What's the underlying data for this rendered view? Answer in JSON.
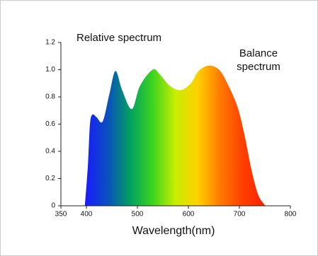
{
  "chart_data": {
    "type": "area",
    "title": "Relative spectrum",
    "annotation": [
      "Balance",
      "spectrum"
    ],
    "annotation_color": "#1a9ad6",
    "x_label": "Wavelength(nm)",
    "x": [
      397,
      403,
      407,
      412,
      420,
      432,
      445,
      457,
      470,
      489,
      505,
      530,
      545,
      564,
      585,
      605,
      620,
      640,
      660,
      675,
      696,
      710,
      724,
      737,
      751
    ],
    "values": [
      0,
      0.3,
      0.6,
      0.67,
      0.65,
      0.62,
      0.82,
      0.99,
      0.85,
      0.71,
      0.88,
      1.0,
      0.96,
      0.88,
      0.85,
      0.9,
      0.99,
      1.03,
      1.0,
      0.91,
      0.73,
      0.52,
      0.26,
      0.08,
      0
    ],
    "colors": [
      "#1a1aff",
      "#0a4fc0",
      "#00a060",
      "#3cd420",
      "#c8ee00",
      "#ffd000",
      "#ff7a00",
      "#ff4000",
      "#ff2000"
    ],
    "xlim": [
      350,
      800
    ],
    "ylim": [
      0,
      1.2
    ],
    "xticks": [
      350,
      400,
      500,
      600,
      700,
      800
    ],
    "yticks": [
      0,
      0.2,
      0.4,
      0.6,
      0.8,
      {
        "value": 1,
        "label": "1.0"
      },
      1.2
    ]
  }
}
